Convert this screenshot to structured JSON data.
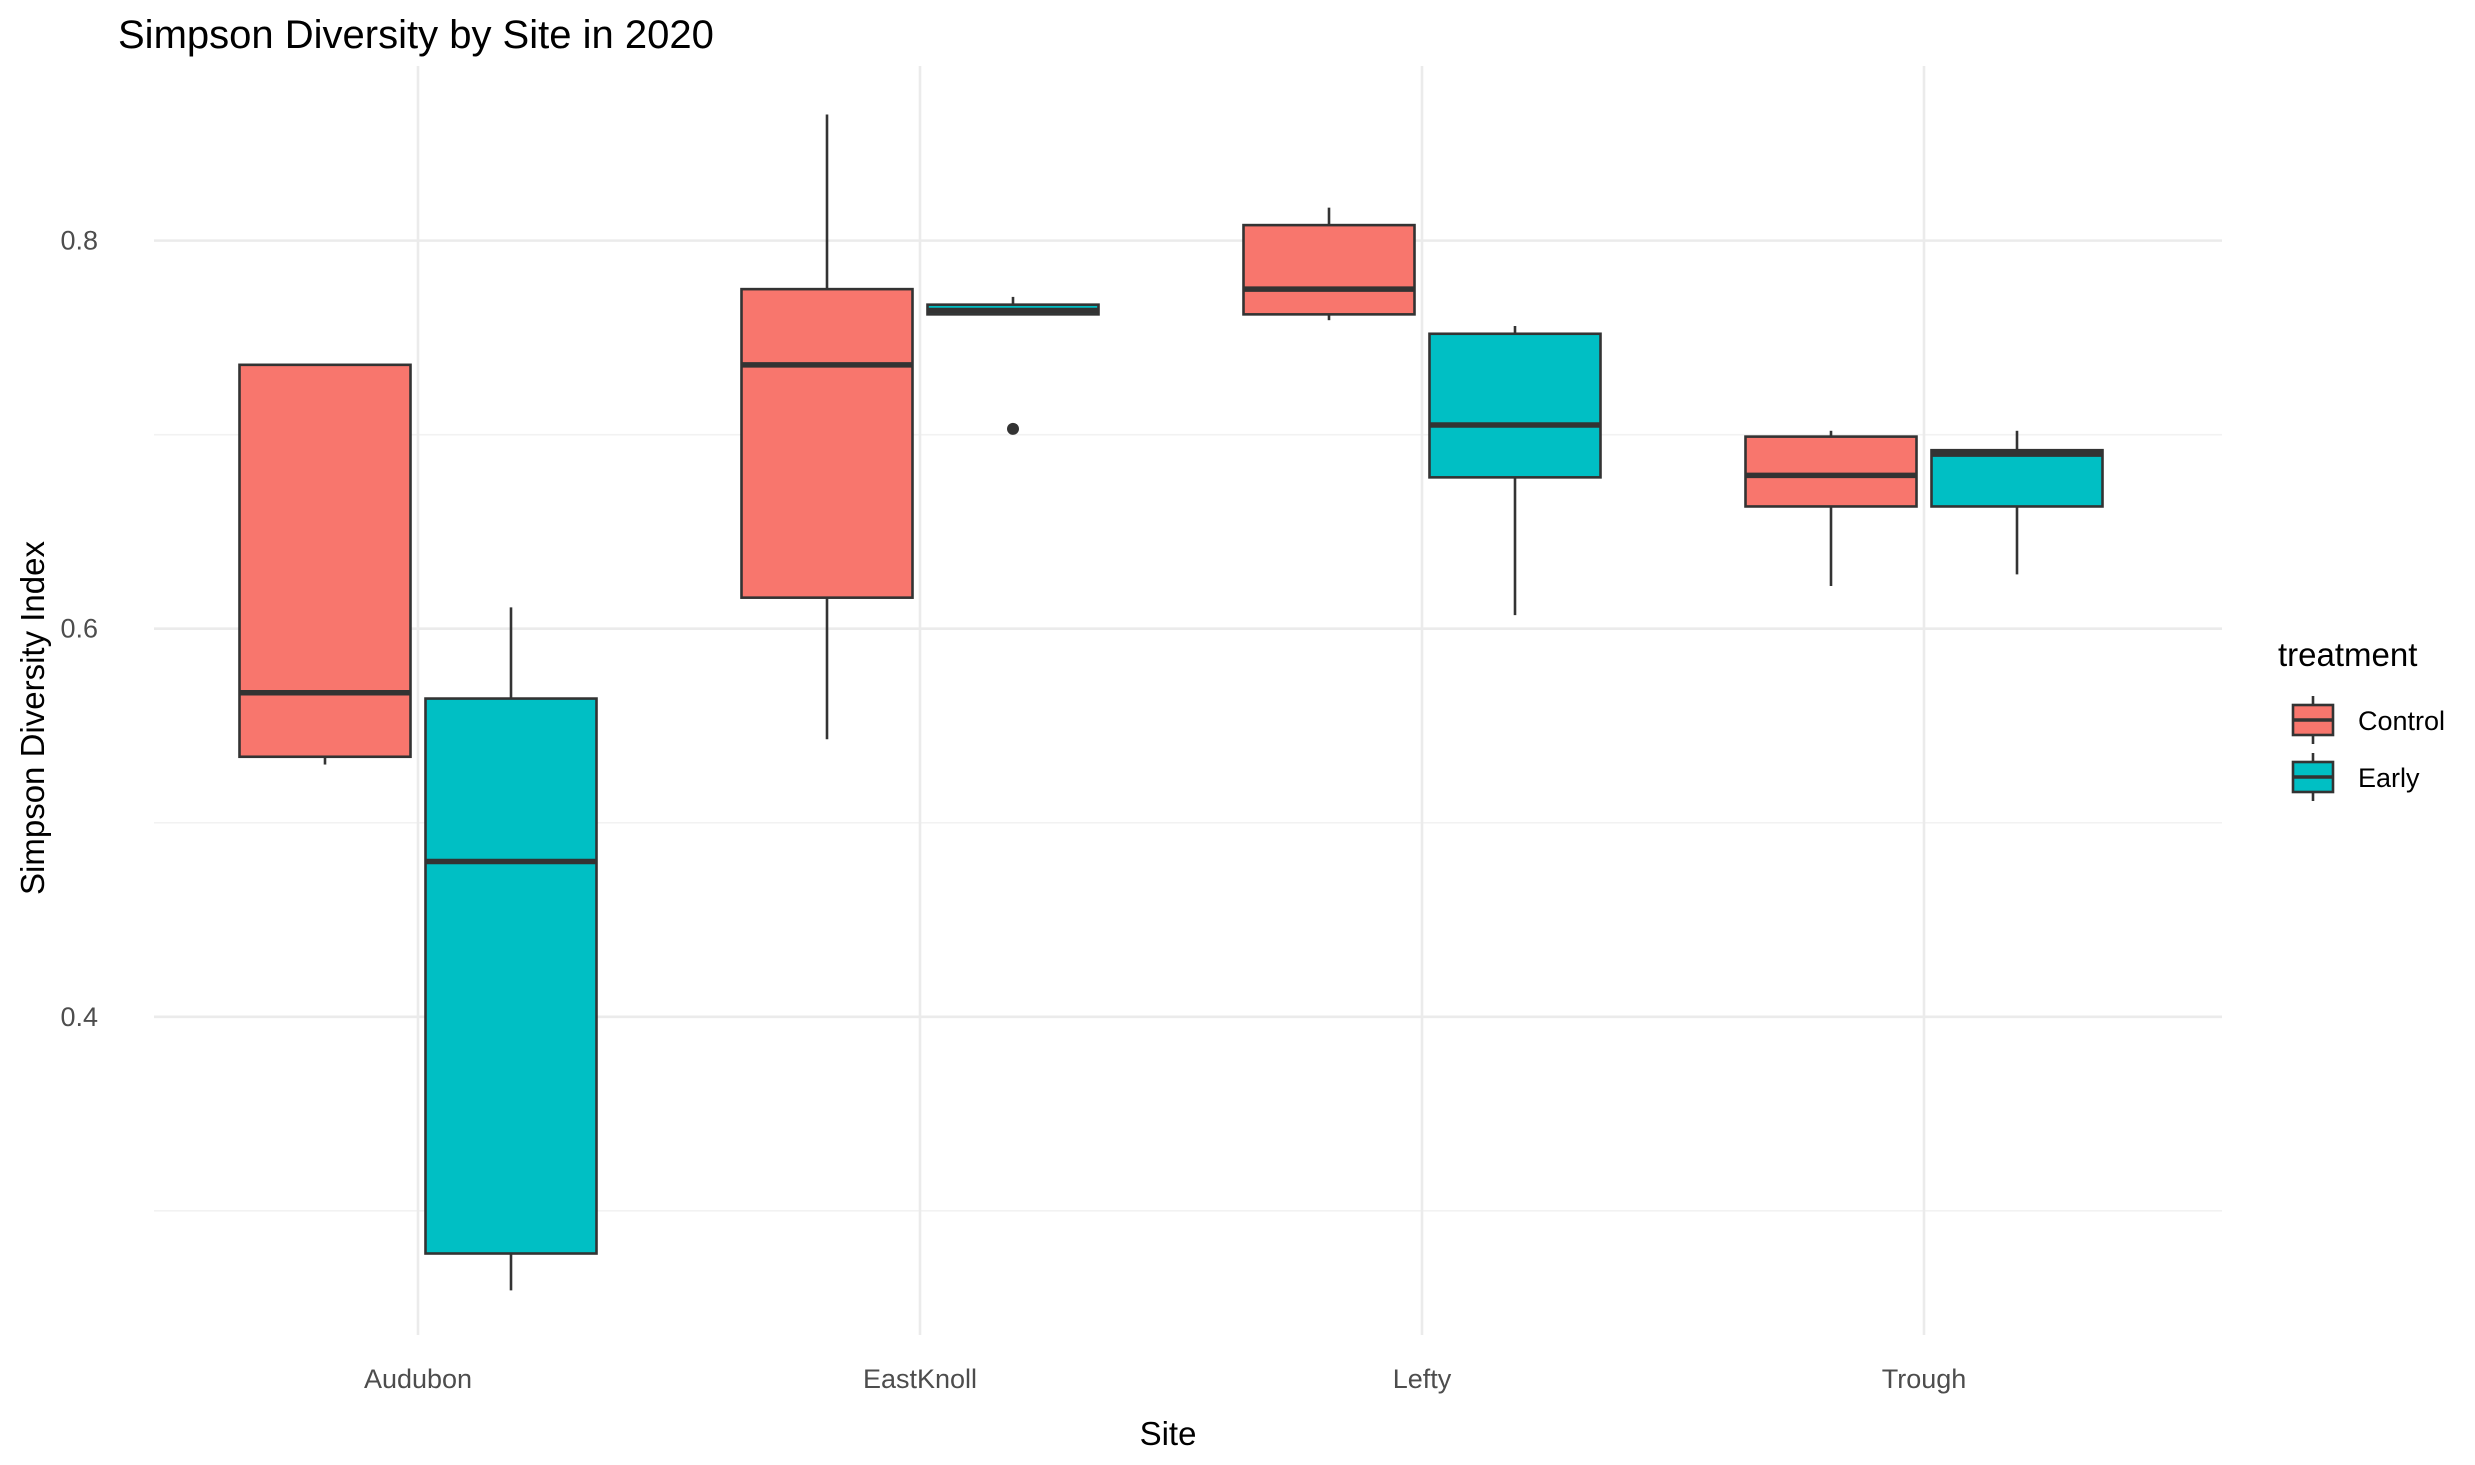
{
  "chart_data": {
    "type": "box",
    "title": "Simpson Diversity by Site in 2020",
    "xlabel": "Site",
    "ylabel": "Simpson Diversity Index",
    "categories": [
      "Audubon",
      "EastKnoll",
      "Lefty",
      "Trough"
    ],
    "ylim": [
      0.236,
      0.89
    ],
    "yticks": [
      0.4,
      0.6,
      0.8
    ],
    "ytick_labels": [
      "0.4",
      "0.6",
      "0.8"
    ],
    "grid": true,
    "legend": {
      "title": "treatment",
      "position": "right"
    },
    "series": [
      {
        "name": "Control",
        "color": "#F8766D",
        "boxes": [
          {
            "category": "Audubon",
            "min": 0.53,
            "q1": 0.534,
            "median": 0.567,
            "q3": 0.736,
            "max": 0.736,
            "outliers": []
          },
          {
            "category": "EastKnoll",
            "min": 0.543,
            "q1": 0.616,
            "median": 0.736,
            "q3": 0.775,
            "max": 0.865,
            "outliers": []
          },
          {
            "category": "Lefty",
            "min": 0.759,
            "q1": 0.762,
            "median": 0.775,
            "q3": 0.808,
            "max": 0.817,
            "outliers": []
          },
          {
            "category": "Trough",
            "min": 0.622,
            "q1": 0.663,
            "median": 0.679,
            "q3": 0.699,
            "max": 0.702,
            "outliers": []
          }
        ]
      },
      {
        "name": "Early",
        "color": "#00BFC4",
        "boxes": [
          {
            "category": "Audubon",
            "min": 0.259,
            "q1": 0.278,
            "median": 0.48,
            "q3": 0.564,
            "max": 0.611,
            "outliers": []
          },
          {
            "category": "EastKnoll",
            "min": 0.762,
            "q1": 0.762,
            "median": 0.764,
            "q3": 0.767,
            "max": 0.771,
            "outliers": [
              0.703
            ]
          },
          {
            "category": "Lefty",
            "min": 0.607,
            "q1": 0.678,
            "median": 0.705,
            "q3": 0.752,
            "max": 0.756,
            "outliers": []
          },
          {
            "category": "Trough",
            "min": 0.628,
            "q1": 0.663,
            "median": 0.69,
            "q3": 0.692,
            "max": 0.702,
            "outliers": []
          }
        ]
      }
    ]
  }
}
